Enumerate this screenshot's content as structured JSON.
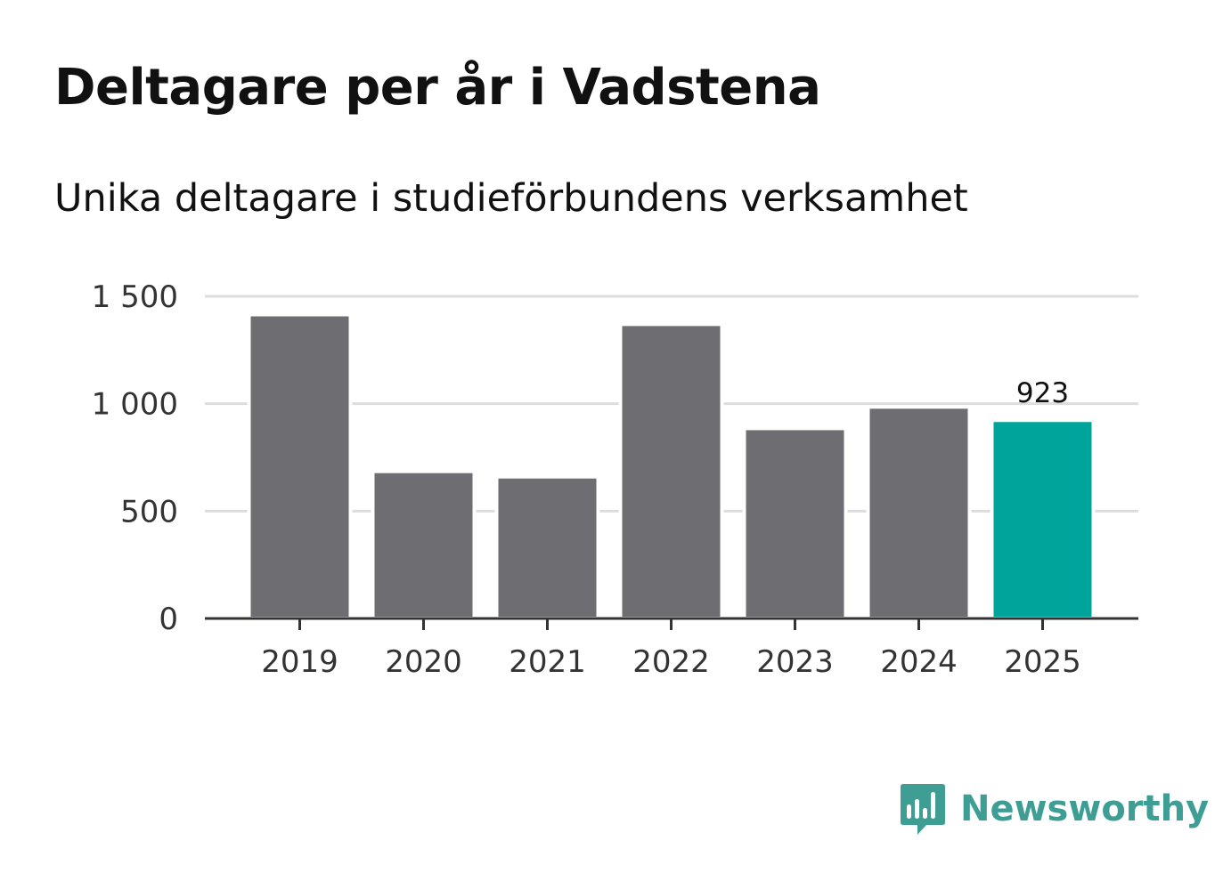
{
  "header": {
    "title": "Deltagare per år i Vadstena",
    "subtitle": "Unika deltagare i studieförbundens verksamhet"
  },
  "brand": {
    "name": "Newsworthy",
    "color": "#3f9e94"
  },
  "colors": {
    "bar": "#6e6d72",
    "highlight": "#00a49a",
    "grid": "#dddddd",
    "axis": "#333333"
  },
  "chart_data": {
    "type": "bar",
    "title": "Deltagare per år i Vadstena",
    "subtitle": "Unika deltagare i studieförbundens verksamhet",
    "xlabel": "",
    "ylabel": "",
    "categories": [
      "2019",
      "2020",
      "2021",
      "2022",
      "2023",
      "2024",
      "2025"
    ],
    "values": [
      1415,
      685,
      660,
      1370,
      885,
      985,
      923
    ],
    "highlight_index": 6,
    "data_labels": [
      {
        "index": 6,
        "text": "923"
      }
    ],
    "ylim": [
      0,
      1500
    ],
    "yticks": [
      0,
      500,
      1000,
      1500
    ],
    "ytick_labels": [
      "0",
      "500",
      "1 000",
      "1 500"
    ],
    "grid": true,
    "legend": "none"
  }
}
